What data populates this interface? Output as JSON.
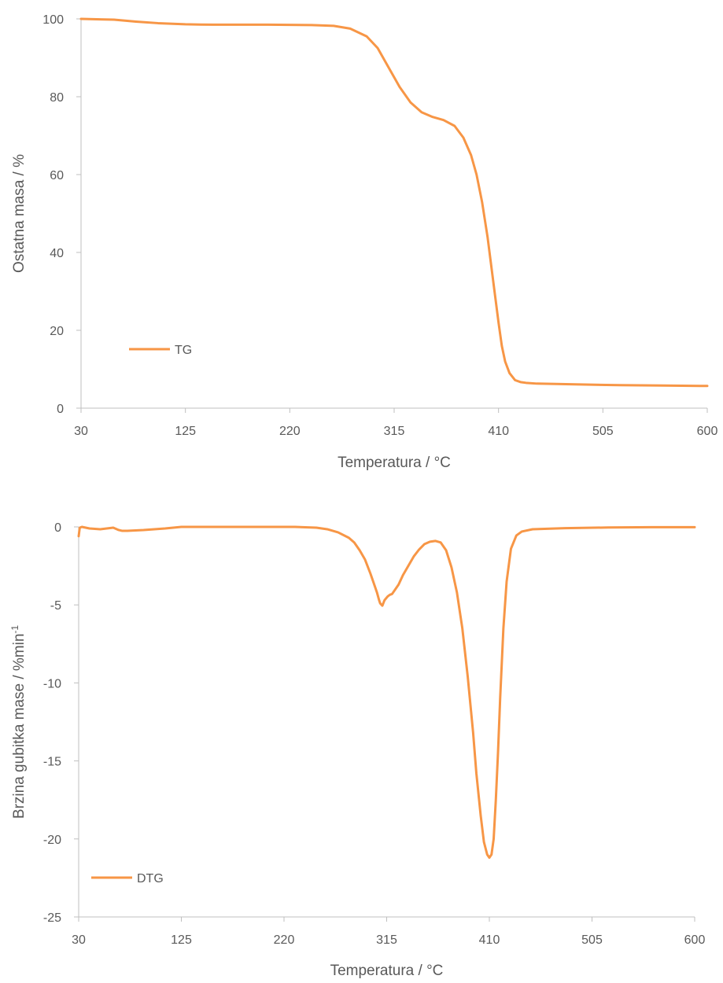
{
  "chart_data": [
    {
      "type": "line",
      "title": "",
      "xlabel": "Temperatura / °C",
      "ylabel": "Ostatna masa / %",
      "xlim": [
        30,
        600
      ],
      "ylim": [
        0,
        100
      ],
      "xticks": [
        "30",
        "125",
        "220",
        "315",
        "410",
        "505",
        "600"
      ],
      "yticks": [
        "0",
        "20",
        "40",
        "60",
        "80",
        "100"
      ],
      "grid": false,
      "legend_position": "lower-left",
      "color": "#F79646",
      "series": [
        {
          "name": "TG",
          "x": [
            30,
            60,
            80,
            100,
            125,
            150,
            200,
            240,
            260,
            275,
            290,
            300,
            307,
            315,
            320,
            330,
            340,
            350,
            360,
            370,
            378,
            385,
            390,
            395,
            400,
            405,
            410,
            413,
            416,
            420,
            425,
            430,
            435,
            445,
            480,
            520,
            560,
            600
          ],
          "y": [
            100,
            99.8,
            99.3,
            98.9,
            98.6,
            98.5,
            98.5,
            98.4,
            98.2,
            97.5,
            95.5,
            92.5,
            89,
            85,
            82.5,
            78.5,
            76,
            74.8,
            74,
            72.5,
            69.5,
            65,
            60,
            53,
            44,
            33,
            22,
            16,
            12,
            9,
            7.2,
            6.7,
            6.5,
            6.3,
            6.1,
            5.9,
            5.8,
            5.7
          ]
        }
      ]
    },
    {
      "type": "line",
      "title": "",
      "xlabel": "Temperatura / °C",
      "ylabel": "Brzina gubitka mase /  %min",
      "ylabel_superscript": "-1",
      "xlim": [
        30,
        600
      ],
      "ylim": [
        -25,
        0
      ],
      "xticks": [
        "30",
        "125",
        "220",
        "315",
        "410",
        "505",
        "600"
      ],
      "yticks": [
        "0",
        "-5",
        "-10",
        "-15",
        "-20",
        "-25"
      ],
      "grid": false,
      "legend_position": "lower-left",
      "color": "#F79646",
      "series": [
        {
          "name": "DTG",
          "x": [
            30,
            31,
            33,
            40,
            50,
            62,
            67,
            70,
            75,
            90,
            110,
            125,
            150,
            200,
            230,
            250,
            260,
            270,
            280,
            285,
            290,
            295,
            300,
            303,
            306,
            308,
            309,
            311,
            313,
            316,
            318,
            320,
            323,
            326,
            330,
            335,
            340,
            345,
            350,
            355,
            360,
            365,
            370,
            375,
            380,
            385,
            390,
            395,
            398,
            402,
            405,
            408,
            410,
            412,
            414,
            416,
            418,
            420,
            423,
            426,
            430,
            435,
            440,
            450,
            480,
            520,
            560,
            600
          ],
          "y": [
            -0.6,
            -0.05,
            0,
            -0.1,
            -0.15,
            -0.05,
            -0.2,
            -0.25,
            -0.25,
            -0.2,
            -0.1,
            0,
            0,
            0,
            0,
            -0.05,
            -0.15,
            -0.35,
            -0.7,
            -1.0,
            -1.5,
            -2.1,
            -3.0,
            -3.6,
            -4.2,
            -4.7,
            -4.9,
            -5.05,
            -4.7,
            -4.45,
            -4.35,
            -4.3,
            -4.0,
            -3.7,
            -3.1,
            -2.5,
            -1.9,
            -1.45,
            -1.1,
            -0.95,
            -0.9,
            -1.0,
            -1.5,
            -2.6,
            -4.2,
            -6.5,
            -9.6,
            -13.2,
            -15.8,
            -18.5,
            -20.2,
            -21.0,
            -21.2,
            -21.0,
            -20.0,
            -17.5,
            -14.5,
            -11.0,
            -6.5,
            -3.5,
            -1.4,
            -0.55,
            -0.3,
            -0.15,
            -0.08,
            -0.04,
            -0.02,
            -0.02
          ]
        }
      ]
    }
  ]
}
